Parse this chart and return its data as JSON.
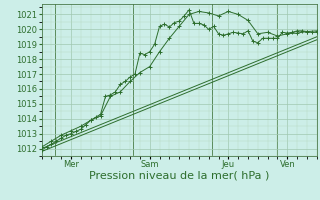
{
  "background_color": "#cceee8",
  "grid_color_major": "#a0c8b0",
  "grid_color_minor": "#b8d8c0",
  "line_color": "#2d6e2d",
  "xlabel": "Pression niveau de la mer( hPa )",
  "xlabel_fontsize": 8,
  "tick_fontsize": 6,
  "ylim": [
    1011.5,
    1021.7
  ],
  "yticks": [
    1012,
    1013,
    1014,
    1015,
    1016,
    1017,
    1018,
    1019,
    1020,
    1021
  ],
  "xlim": [
    0,
    168
  ],
  "day_positions": [
    18,
    66,
    114,
    150
  ],
  "day_labels": [
    "Mer",
    "Sam",
    "Jeu",
    "Ven"
  ],
  "vline_positions": [
    8,
    56,
    104,
    144
  ],
  "series1_x": [
    0,
    3,
    6,
    9,
    12,
    15,
    18,
    21,
    24,
    27,
    30,
    33,
    36,
    39,
    42,
    45,
    48,
    51,
    54,
    57,
    60,
    63,
    66,
    69,
    72,
    75,
    78,
    81,
    84,
    87,
    90,
    93,
    96,
    99,
    102,
    105,
    108,
    111,
    114,
    117,
    120,
    123,
    126,
    129,
    132,
    135,
    138,
    141,
    144,
    147,
    150,
    153,
    156,
    159,
    162,
    165,
    168
  ],
  "series1_y": [
    1011.9,
    1012.1,
    1012.3,
    1012.5,
    1012.7,
    1012.9,
    1013.0,
    1013.15,
    1013.3,
    1013.6,
    1013.9,
    1014.1,
    1014.3,
    1015.5,
    1015.6,
    1015.8,
    1016.3,
    1016.5,
    1016.8,
    1017.0,
    1018.4,
    1018.3,
    1018.5,
    1019.0,
    1020.2,
    1020.35,
    1020.15,
    1020.45,
    1020.55,
    1020.9,
    1021.3,
    1020.4,
    1020.4,
    1020.3,
    1020.0,
    1020.2,
    1019.7,
    1019.6,
    1019.7,
    1019.8,
    1019.75,
    1019.7,
    1019.9,
    1019.2,
    1019.1,
    1019.4,
    1019.4,
    1019.4,
    1019.4,
    1019.8,
    1019.75,
    1019.8,
    1019.9,
    1019.9,
    1019.85,
    1019.8,
    1019.8
  ],
  "series2_x": [
    0,
    6,
    12,
    18,
    24,
    30,
    36,
    42,
    48,
    54,
    60,
    66,
    72,
    78,
    84,
    90,
    96,
    102,
    108,
    114,
    120,
    126,
    132,
    138,
    144,
    150,
    156,
    162,
    168
  ],
  "series2_y": [
    1012.1,
    1012.5,
    1012.9,
    1013.2,
    1013.5,
    1013.9,
    1014.2,
    1015.5,
    1015.8,
    1016.5,
    1017.1,
    1017.5,
    1018.5,
    1019.4,
    1020.2,
    1021.0,
    1021.2,
    1021.1,
    1020.9,
    1021.2,
    1021.0,
    1020.6,
    1019.7,
    1019.8,
    1019.55,
    1019.7,
    1019.75,
    1019.85,
    1019.9
  ],
  "series3_x": [
    0,
    168
  ],
  "series3_y": [
    1012.0,
    1019.5
  ],
  "series4_x": [
    0,
    168
  ],
  "series4_y": [
    1011.8,
    1019.3
  ]
}
